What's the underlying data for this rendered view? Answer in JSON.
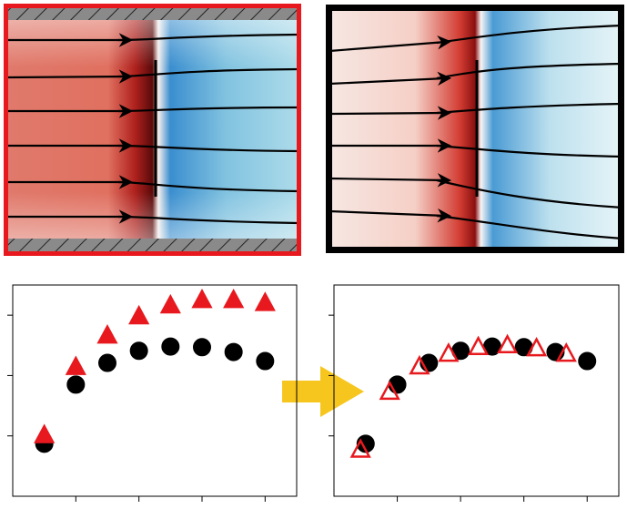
{
  "chart_data": [
    {
      "type": "scatter",
      "xlim": [
        0,
        4.5
      ],
      "ylim": [
        0,
        3.5
      ],
      "xticks": [
        1,
        2,
        3,
        4
      ],
      "yticks": [
        1,
        2,
        3
      ],
      "series": [
        {
          "color": "#000000",
          "marker": "circle",
          "filled": true,
          "x": [
            0.5,
            1,
            1.5,
            2,
            2.5,
            3,
            3.5,
            4
          ],
          "values": [
            0.87,
            1.85,
            2.21,
            2.41,
            2.48,
            2.47,
            2.39,
            2.24
          ]
        },
        {
          "color": "#e8191e",
          "marker": "triangle",
          "filled": true,
          "x": [
            0.5,
            1,
            1.5,
            2,
            2.5,
            3,
            3.5,
            4
          ],
          "values": [
            1.01,
            2.14,
            2.66,
            2.98,
            3.16,
            3.25,
            3.25,
            3.2
          ]
        }
      ]
    },
    {
      "type": "scatter",
      "xlim": [
        0,
        4.5
      ],
      "ylim": [
        0,
        3.5
      ],
      "xticks": [
        1,
        2,
        3,
        4
      ],
      "yticks": [
        1,
        2,
        3
      ],
      "series": [
        {
          "color": "#000000",
          "marker": "circle",
          "filled": true,
          "x": [
            0.5,
            1,
            1.5,
            2,
            2.5,
            3,
            3.5,
            4
          ],
          "values": [
            0.87,
            1.85,
            2.21,
            2.41,
            2.48,
            2.47,
            2.39,
            2.24
          ]
        },
        {
          "color": "#e8191e",
          "marker": "triangle",
          "filled": false,
          "x": [
            0.42,
            0.88,
            1.35,
            1.81,
            2.28,
            2.74,
            3.2,
            3.67
          ],
          "values": [
            0.77,
            1.73,
            2.15,
            2.36,
            2.47,
            2.5,
            2.45,
            2.36
          ]
        }
      ]
    }
  ]
}
